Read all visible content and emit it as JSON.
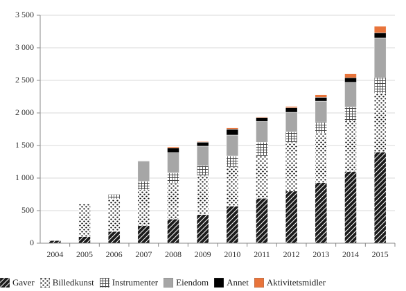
{
  "chart_data": {
    "type": "bar",
    "stacked": true,
    "categories": [
      "2004",
      "2005",
      "2006",
      "2007",
      "2008",
      "2009",
      "2010",
      "2011",
      "2012",
      "2013",
      "2014",
      "2015"
    ],
    "ylim": [
      0,
      3500
    ],
    "yticks": [
      0,
      500,
      1000,
      1500,
      2000,
      2500,
      3000,
      3500
    ],
    "ytick_labels": [
      "0",
      "500",
      "1 000",
      "1 500",
      "2 000",
      "2 500",
      "3 000",
      "3 500"
    ],
    "grid": true,
    "legend_position": "bottom",
    "series": [
      {
        "name": "Gaver",
        "pattern": "hatch-dark",
        "color": "#1a1a1a",
        "values": [
          40,
          100,
          180,
          270,
          370,
          440,
          570,
          690,
          800,
          930,
          1100,
          1400
        ]
      },
      {
        "name": "Billedkunst",
        "pattern": "dots",
        "color": "#1a1a1a",
        "values": [
          0,
          500,
          500,
          550,
          550,
          600,
          600,
          650,
          750,
          760,
          780,
          900
        ]
      },
      {
        "name": "Instrumenter",
        "pattern": "grid",
        "color": "#555555",
        "values": [
          0,
          0,
          70,
          130,
          160,
          150,
          170,
          210,
          160,
          170,
          210,
          250
        ]
      },
      {
        "name": "Eiendom",
        "pattern": "solid",
        "color": "#a6a6a6",
        "values": [
          0,
          0,
          0,
          300,
          310,
          300,
          320,
          320,
          300,
          320,
          380,
          600
        ]
      },
      {
        "name": "Annet",
        "pattern": "solid",
        "color": "#000000",
        "values": [
          0,
          0,
          0,
          10,
          70,
          60,
          90,
          60,
          70,
          60,
          70,
          80
        ]
      },
      {
        "name": "Aktivitetsmidler",
        "pattern": "solid",
        "color": "#e8743b",
        "values": [
          0,
          0,
          0,
          0,
          20,
          10,
          20,
          10,
          20,
          40,
          60,
          100
        ]
      }
    ]
  }
}
